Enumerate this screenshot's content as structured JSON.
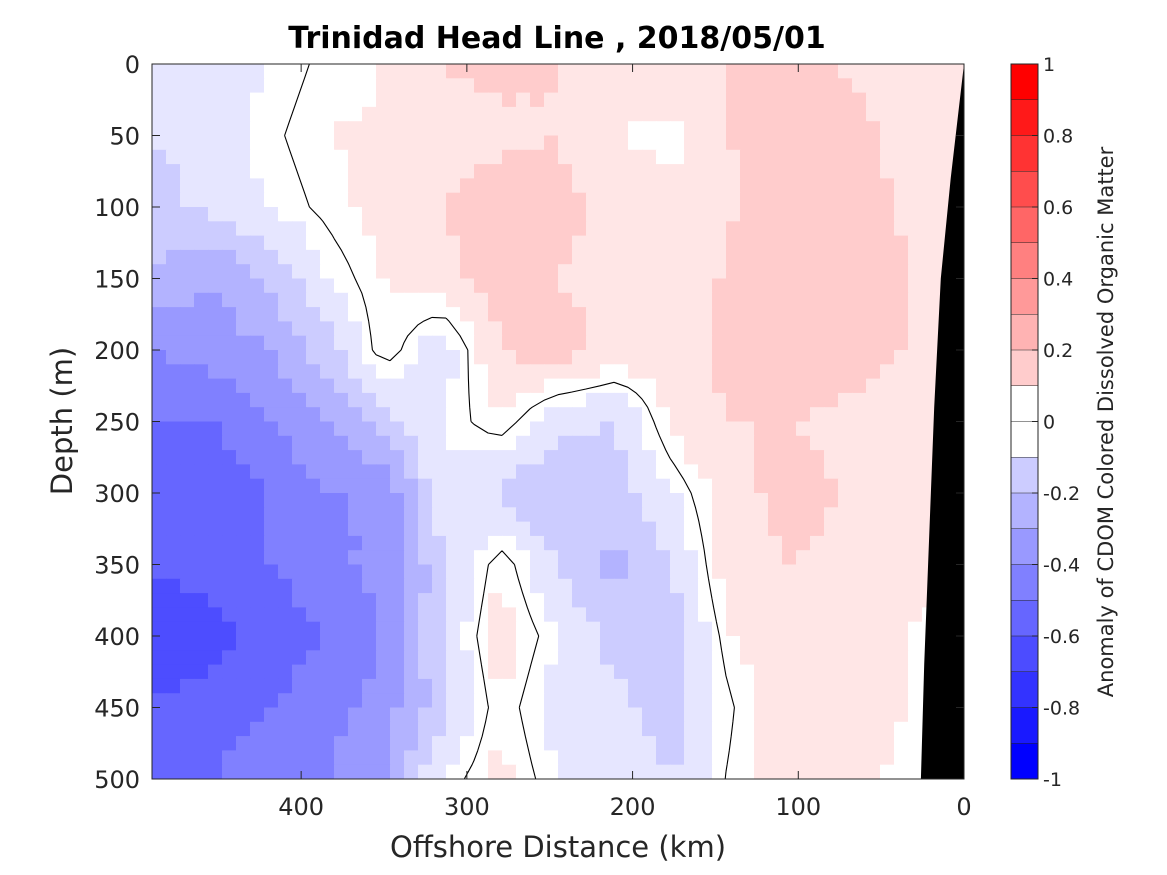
{
  "chart_data": {
    "type": "heatmap",
    "title": "Trinidad Head Line , 2018/05/01",
    "xlabel": "Offshore Distance (km)",
    "ylabel": "Depth (m)",
    "colorbar_label": "Anomaly of CDOM Colored Dissolved Organic Matter",
    "xlim": [
      490,
      0
    ],
    "ylim": [
      0,
      500
    ],
    "x_reversed": true,
    "y_reversed": true,
    "x_ticks": [
      "400",
      "300",
      "200",
      "100",
      "0"
    ],
    "y_ticks": [
      "0",
      "50",
      "100",
      "150",
      "200",
      "250",
      "300",
      "350",
      "400",
      "450",
      "500"
    ],
    "colorbar_range": [
      -1,
      1
    ],
    "colorbar_ticks": [
      "1",
      "0.8",
      "0.6",
      "0.4",
      "0.2",
      "0",
      "-0.2",
      "-0.4",
      "-0.6",
      "-0.8",
      "-1"
    ],
    "colormap": "blue-white-red diverging, 20 levels of 0.1",
    "contour_level": 0,
    "grid": false,
    "x_grid": [
      490,
      455,
      420,
      385,
      350,
      315,
      280,
      245,
      210,
      175,
      140,
      105,
      70,
      35,
      0
    ],
    "z_rows": [
      {
        "depth": 0,
        "values": [
          -0.15,
          -0.12,
          -0.05,
          0.02,
          0.05,
          0.15,
          0.18,
          0.15,
          0.14,
          0.12,
          0.15,
          0.2,
          0.14,
          0.1,
          0.1
        ]
      },
      {
        "depth": 50,
        "values": [
          -0.15,
          -0.1,
          -0.02,
          0.05,
          0.06,
          0.1,
          0.12,
          0.15,
          0.05,
          0.02,
          0.15,
          0.22,
          0.18,
          0.12,
          0.1
        ]
      },
      {
        "depth": 100,
        "values": [
          -0.2,
          -0.12,
          -0.05,
          0.02,
          0.08,
          0.15,
          0.22,
          0.18,
          0.12,
          0.08,
          0.14,
          0.22,
          0.2,
          0.14,
          0.1
        ]
      },
      {
        "depth": 150,
        "values": [
          -0.25,
          -0.35,
          -0.25,
          -0.05,
          0.05,
          0.12,
          0.2,
          0.15,
          0.1,
          0.05,
          0.18,
          0.25,
          0.22,
          0.15,
          0.1
        ]
      },
      {
        "depth": 200,
        "values": [
          -0.45,
          -0.4,
          -0.35,
          -0.2,
          0.05,
          -0.12,
          0.15,
          0.2,
          0.12,
          0.08,
          0.2,
          0.25,
          0.2,
          0.15,
          0.1
        ]
      },
      {
        "depth": 250,
        "values": [
          -0.55,
          -0.55,
          -0.45,
          -0.35,
          -0.2,
          -0.05,
          0.05,
          -0.12,
          -0.15,
          0.08,
          0.15,
          0.15,
          0.12,
          0.08,
          0.05
        ]
      },
      {
        "depth": 300,
        "values": [
          -0.6,
          -0.65,
          -0.55,
          -0.45,
          -0.45,
          -0.05,
          -0.18,
          -0.25,
          -0.2,
          -0.05,
          0.12,
          0.18,
          0.15,
          0.1,
          0.05
        ]
      },
      {
        "depth": 350,
        "values": [
          -0.65,
          -0.6,
          -0.55,
          -0.5,
          -0.4,
          -0.2,
          0.05,
          -0.15,
          -0.28,
          -0.15,
          0.12,
          0.15,
          0.12,
          0.08,
          0.05
        ]
      },
      {
        "depth": 400,
        "values": [
          -0.7,
          -0.7,
          -0.6,
          -0.55,
          -0.45,
          -0.15,
          0.1,
          -0.05,
          -0.2,
          -0.18,
          0.05,
          0.12,
          0.1,
          0.05,
          0.02
        ]
      },
      {
        "depth": 450,
        "values": [
          -0.65,
          -0.6,
          -0.55,
          -0.5,
          -0.4,
          -0.2,
          0.05,
          -0.1,
          -0.12,
          -0.2,
          0.0,
          0.1,
          0.08,
          0.05,
          0.02
        ]
      },
      {
        "depth": 500,
        "values": [
          -0.6,
          -0.55,
          -0.5,
          -0.45,
          -0.35,
          -0.05,
          0.08,
          -0.05,
          -0.08,
          -0.15,
          0.02,
          0.08,
          0.06,
          0.04,
          0.02
        ]
      }
    ],
    "bottom_topography_color": "#000000"
  }
}
